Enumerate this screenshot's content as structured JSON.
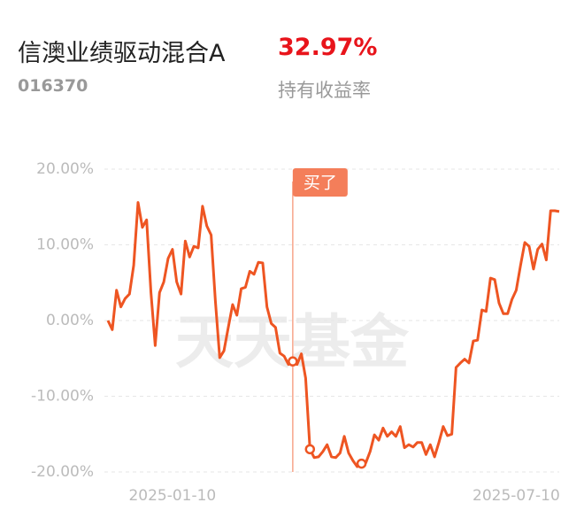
{
  "header": {
    "name": "信澳业绩驱动混合A",
    "code": "016370",
    "return_value": "32.97%",
    "return_label": "持有收益率"
  },
  "chart_data": {
    "type": "line",
    "watermark": "天天基金",
    "color": "#ee5522",
    "grid": true,
    "ylim": [
      -20,
      20
    ],
    "yticks": [
      {
        "value": 20,
        "label": "20.00%"
      },
      {
        "value": 10,
        "label": "10.00%"
      },
      {
        "value": 0,
        "label": "0.00%"
      },
      {
        "value": -10,
        "label": "-10.00%"
      },
      {
        "value": -20,
        "label": "-20.00%"
      }
    ],
    "categories": [
      null,
      null,
      null,
      null,
      null,
      null,
      null,
      null,
      null,
      null,
      null,
      null,
      null,
      null,
      null,
      "2025-01-10",
      null,
      null,
      null,
      null,
      null,
      null,
      null,
      null,
      null,
      null,
      null,
      null,
      null,
      null,
      null,
      null,
      null,
      null,
      null,
      null,
      null,
      null,
      null,
      null,
      null,
      null,
      null,
      null,
      null,
      null,
      null,
      null,
      null,
      null,
      null,
      null,
      null,
      null,
      null,
      null,
      null,
      null,
      null,
      null,
      null,
      null,
      null,
      null,
      null,
      null,
      null,
      null,
      null,
      null,
      null,
      null,
      null,
      null,
      null,
      null,
      null,
      null,
      null,
      null,
      null,
      null,
      null,
      null,
      null,
      null,
      null,
      null,
      null,
      null,
      null,
      null,
      null,
      null,
      null,
      "2025-07-10",
      null,
      null,
      null,
      null,
      null,
      null,
      null,
      null,
      null,
      null
    ],
    "values": [
      0,
      -1.2,
      4.0,
      1.8,
      2.9,
      3.5,
      7.3,
      15.6,
      12.3,
      13.3,
      3.7,
      -3.3,
      3.7,
      5.1,
      8.2,
      9.4,
      5.1,
      3.5,
      10.5,
      8.4,
      9.8,
      9.6,
      15.1,
      12.5,
      11.3,
      2.6,
      -4.9,
      -4.0,
      -0.9,
      2.1,
      0.7,
      4.2,
      4.4,
      6.5,
      6.1,
      7.7,
      7.6,
      1.8,
      -0.4,
      -0.9,
      -4.3,
      -4.7,
      -5.8,
      -5.4,
      -5.8,
      -4.4,
      -7.6,
      -17.0,
      -18.1,
      -18.0,
      -17.3,
      -16.4,
      -18.0,
      -18.1,
      -17.5,
      -15.3,
      -17.5,
      -18.5,
      -19.3,
      -18.9,
      -18.8,
      -17.3,
      -15.1,
      -15.8,
      -14.2,
      -15.3,
      -14.7,
      -15.3,
      -14.0,
      -16.8,
      -16.4,
      -16.7,
      -16.1,
      -16.1,
      -17.7,
      -16.4,
      -18.0,
      -16.1,
      -14.0,
      -15.2,
      -15.0,
      -6.2,
      -5.6,
      -5.1,
      -5.6,
      -2.7,
      -2.6,
      1.4,
      1.2,
      5.6,
      5.4,
      2.3,
      0.9,
      0.9,
      2.8,
      4.0,
      7.3,
      10.3,
      9.8,
      6.8,
      9.4,
      10.1,
      8.0,
      14.5,
      14.5,
      14.4
    ],
    "annotation": {
      "text": "买了",
      "index": 43
    },
    "markers": [
      43,
      47,
      59
    ]
  }
}
